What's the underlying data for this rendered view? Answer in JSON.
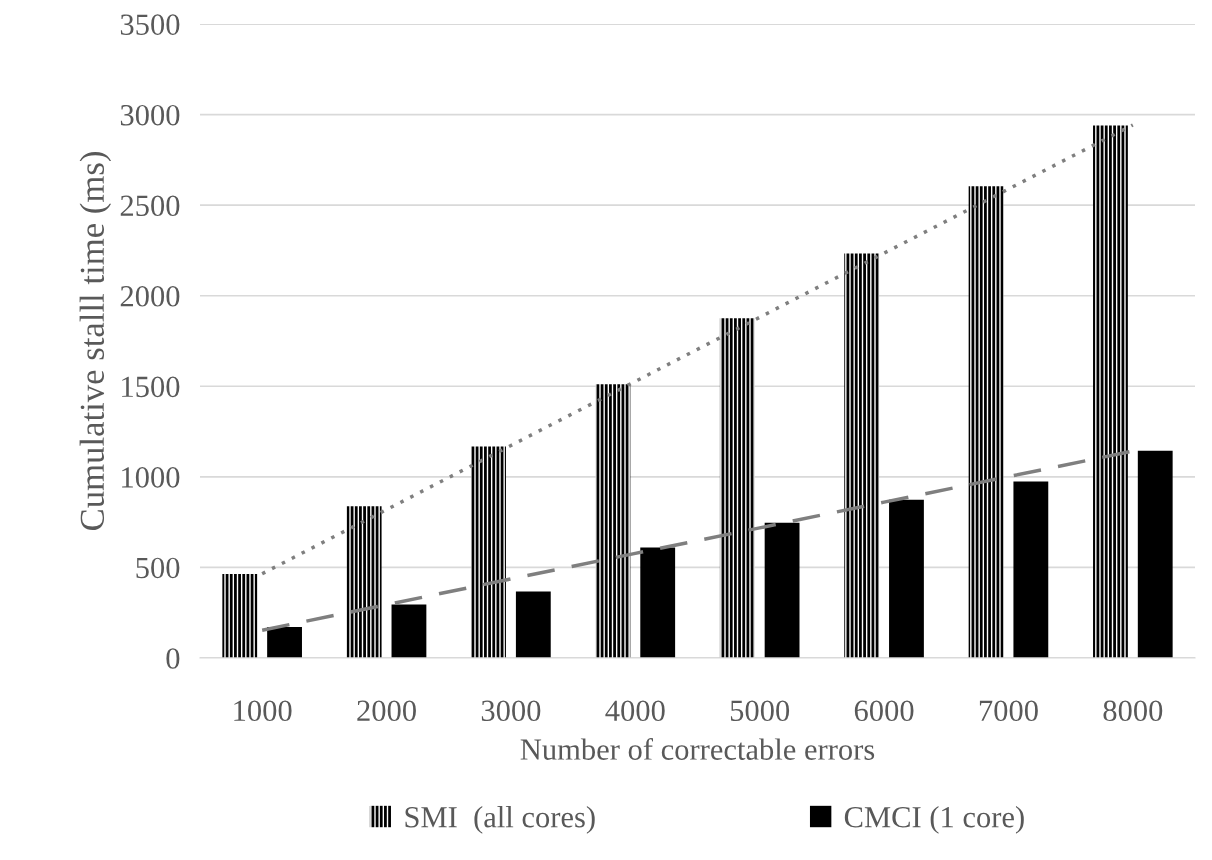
{
  "chart_data": {
    "type": "bar",
    "xlabel": "Number of correctable errors",
    "ylabel": "Cumulative stalll time (ms)",
    "categories": [
      "1000",
      "2000",
      "3000",
      "4000",
      "5000",
      "6000",
      "7000",
      "8000"
    ],
    "series": [
      {
        "name": "SMI  (all cores)",
        "color": "#000000",
        "values": [
          463,
          837,
          1168,
          1511,
          1875,
          2233,
          2604,
          2940
        ]
      },
      {
        "name": "CMCI (1 core)",
        "color": "#000000",
        "values": [
          170,
          295,
          367,
          609,
          746,
          873,
          974,
          1144
        ]
      },
      {
        "type": "line",
        "color": "#7f7f7f",
        "line_style": "dotted",
        "values": [
          465,
          819,
          1173,
          1527,
          1881,
          2235,
          2589,
          2943
        ]
      },
      {
        "type": "line",
        "color": "#7f7f7f",
        "line_style": "dashed",
        "values": [
          153,
          294,
          436,
          577,
          718,
          860,
          1001,
          1142
        ]
      }
    ],
    "ylim": [
      0,
      3500
    ],
    "yticks": [
      0,
      500,
      1000,
      1500,
      2000,
      2500,
      3000,
      3500
    ],
    "grid": "y",
    "legend": "bottom",
    "marker": "none"
  }
}
